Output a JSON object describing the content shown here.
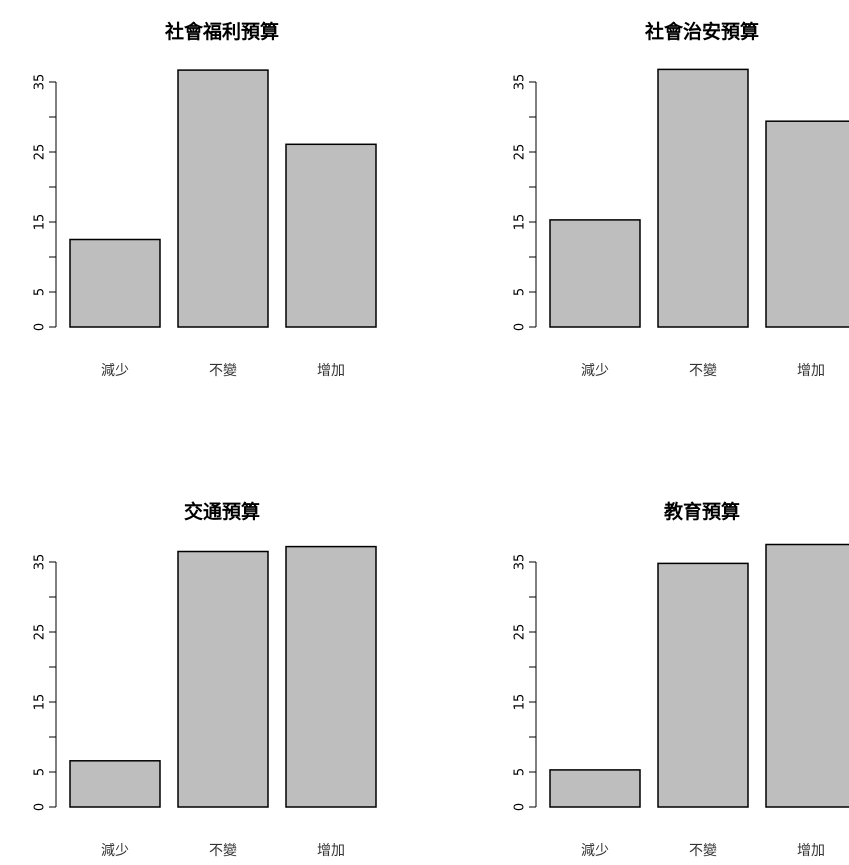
{
  "chart_data": [
    {
      "type": "bar",
      "title": "社會福利預算",
      "categories": [
        "減少",
        "不變",
        "增加"
      ],
      "values": [
        12.5,
        36.7,
        26.1
      ],
      "ylim": [
        0,
        38
      ],
      "yticks": [
        0,
        5,
        15,
        25,
        35
      ],
      "ytick_labels": [
        "0",
        "5",
        "15",
        "25",
        "35"
      ],
      "xlabel": "",
      "ylabel": "",
      "grid": false,
      "bar_color": "#bebebe"
    },
    {
      "type": "bar",
      "title": "社會治安預算",
      "categories": [
        "減少",
        "不變",
        "增加"
      ],
      "values": [
        15.3,
        36.8,
        29.4
      ],
      "ylim": [
        0,
        38
      ],
      "yticks": [
        0,
        5,
        15,
        25,
        35
      ],
      "ytick_labels": [
        "0",
        "5",
        "15",
        "25",
        "35"
      ],
      "xlabel": "",
      "ylabel": "",
      "grid": false,
      "bar_color": "#bebebe"
    },
    {
      "type": "bar",
      "title": "交通預算",
      "categories": [
        "減少",
        "不變",
        "增加"
      ],
      "values": [
        6.6,
        36.5,
        37.2
      ],
      "ylim": [
        0,
        38
      ],
      "yticks": [
        0,
        5,
        15,
        25,
        35
      ],
      "ytick_labels": [
        "0",
        "5",
        "15",
        "25",
        "35"
      ],
      "xlabel": "",
      "ylabel": "",
      "grid": false,
      "bar_color": "#bebebe"
    },
    {
      "type": "bar",
      "title": "教育預算",
      "categories": [
        "減少",
        "不變",
        "增加"
      ],
      "values": [
        5.3,
        34.8,
        37.5
      ],
      "ylim": [
        0,
        38
      ],
      "yticks": [
        0,
        5,
        15,
        25,
        35
      ],
      "ytick_labels": [
        "0",
        "5",
        "15",
        "25",
        "35"
      ],
      "xlabel": "",
      "ylabel": "",
      "grid": false,
      "bar_color": "#bebebe"
    }
  ]
}
